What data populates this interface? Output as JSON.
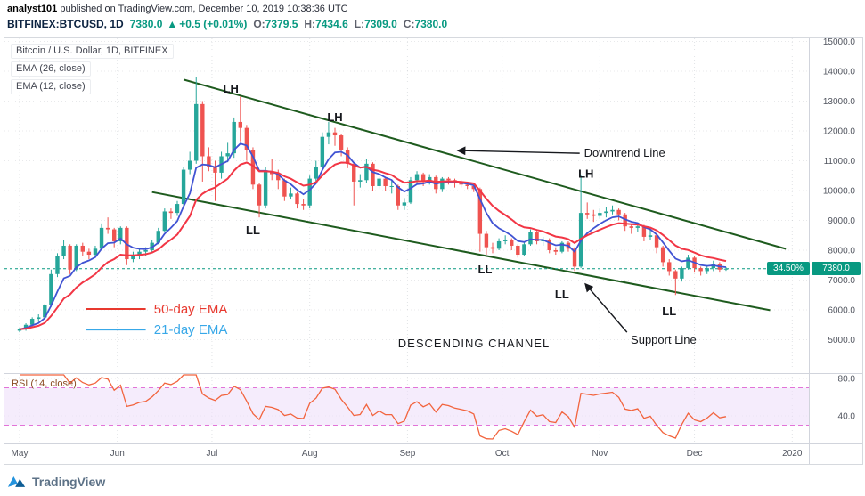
{
  "header": {
    "byline_user": "analyst101",
    "byline_rest": " published on TradingView.com, December 10, 2019 10:38:36 UTC",
    "symbol": "BITFINEX:BTCUSD, 1D",
    "last": "7380.0",
    "arrow": "▲",
    "change": "+0.5 (+0.01%)",
    "o_label": "O:",
    "o": "7379.5",
    "h_label": "H:",
    "h": "7434.6",
    "l_label": "L:",
    "l": "7309.0",
    "c_label": "C:",
    "c": "7380.0"
  },
  "legend": {
    "title": "Bitcoin / U.S. Dollar, 1D, BITFINEX",
    "ema26": "EMA (26, close)",
    "ema12": "EMA (12, close)"
  },
  "rsi_label": "RSI (14, close)",
  "price_axis": {
    "current_badge": "7380.0",
    "percent_badge": "34.50%",
    "ticks": [
      {
        "value": 15000,
        "label": "15000.0"
      },
      {
        "value": 14000,
        "label": "14000.0"
      },
      {
        "value": 13000,
        "label": "13000.0"
      },
      {
        "value": 12000,
        "label": "12000.0"
      },
      {
        "value": 11000,
        "label": "11000.0"
      },
      {
        "value": 10000,
        "label": "10000.0"
      },
      {
        "value": 9000,
        "label": "9000.0"
      },
      {
        "value": 8000,
        "label": "8000.0"
      },
      {
        "value": 7000,
        "label": "7000.0"
      },
      {
        "value": 6000,
        "label": "6000.0"
      },
      {
        "value": 5000,
        "label": "5000.0"
      }
    ]
  },
  "rsi_axis": {
    "ticks": [
      {
        "value": 80,
        "label": "80.0"
      },
      {
        "value": 40,
        "label": "40.0"
      }
    ]
  },
  "time_axis": {
    "labels": [
      {
        "slot": 0,
        "label": "May"
      },
      {
        "slot": 15.5,
        "label": "Jun"
      },
      {
        "slot": 30.5,
        "label": "Jul"
      },
      {
        "slot": 46,
        "label": "Aug"
      },
      {
        "slot": 61.5,
        "label": "Sep"
      },
      {
        "slot": 76.5,
        "label": "Oct"
      },
      {
        "slot": 92,
        "label": "Nov"
      },
      {
        "slot": 107,
        "label": "Dec"
      },
      {
        "slot": 122.5,
        "label": "2020"
      }
    ]
  },
  "footer": {
    "logo_text": "TradingView"
  },
  "colors": {
    "up": "#26a69a",
    "down": "#ef5350",
    "ema_fast": "#4053d3",
    "ema_slow": "#f23645",
    "channel": "#1e5b1e",
    "current": "#089981",
    "rsi": "#f2643e",
    "band_fill": "#efe0fa",
    "band_edge": "#e273d8",
    "badge": "#089981"
  },
  "chart_data": {
    "type": "candlestick",
    "title": "Bitcoin / U.S. Dollar, 1D, BITFINEX",
    "exchange": "BITFINEX",
    "pair": "BTC/USD",
    "interval": "1D",
    "ylim": [
      4000,
      15150
    ],
    "price_line": 7380.0,
    "candles": [
      [
        5300,
        5400,
        5250,
        5350
      ],
      [
        5350,
        5550,
        5300,
        5500
      ],
      [
        5500,
        5750,
        5450,
        5700
      ],
      [
        5700,
        5850,
        5600,
        5750
      ],
      [
        5750,
        6200,
        5700,
        6150
      ],
      [
        6150,
        7350,
        6100,
        7200
      ],
      [
        7200,
        7900,
        7100,
        7800
      ],
      [
        7800,
        8350,
        7700,
        8150
      ],
      [
        8150,
        8200,
        7200,
        7350
      ],
      [
        7350,
        8200,
        7300,
        8150
      ],
      [
        8150,
        8250,
        7800,
        7950
      ],
      [
        7950,
        8050,
        7700,
        7850
      ],
      [
        7850,
        8150,
        7750,
        8050
      ],
      [
        8050,
        8900,
        8000,
        8750
      ],
      [
        8750,
        9100,
        8550,
        8700
      ],
      [
        8700,
        8750,
        8100,
        8300
      ],
      [
        8300,
        8800,
        8200,
        8750
      ],
      [
        8750,
        8800,
        7500,
        7700
      ],
      [
        7700,
        7950,
        7600,
        7800
      ],
      [
        7800,
        8050,
        7700,
        7950
      ],
      [
        7950,
        8100,
        7800,
        8000
      ],
      [
        8000,
        8350,
        7900,
        8250
      ],
      [
        8250,
        8750,
        8200,
        8650
      ],
      [
        8650,
        9400,
        8600,
        9300
      ],
      [
        9300,
        9400,
        9050,
        9250
      ],
      [
        9250,
        9650,
        9150,
        9550
      ],
      [
        9550,
        10800,
        9500,
        10700
      ],
      [
        10700,
        11300,
        10550,
        11000
      ],
      [
        11000,
        13800,
        10900,
        12900
      ],
      [
        12900,
        13000,
        10300,
        11150
      ],
      [
        11150,
        11450,
        10650,
        10800
      ],
      [
        10800,
        11000,
        9650,
        10600
      ],
      [
        10600,
        11300,
        10400,
        11150
      ],
      [
        11150,
        11600,
        10950,
        11250
      ],
      [
        11250,
        12450,
        11100,
        12300
      ],
      [
        12300,
        13150,
        11650,
        12100
      ],
      [
        12100,
        12200,
        11000,
        11350
      ],
      [
        11350,
        11450,
        10050,
        10200
      ],
      [
        10200,
        10250,
        9100,
        9500
      ],
      [
        9500,
        10800,
        9400,
        10650
      ],
      [
        10650,
        11050,
        10350,
        10550
      ],
      [
        10550,
        10700,
        10050,
        10350
      ],
      [
        10350,
        10400,
        9650,
        9800
      ],
      [
        9800,
        10100,
        9700,
        9900
      ],
      [
        9900,
        9950,
        9400,
        9550
      ],
      [
        9550,
        9700,
        9350,
        9500
      ],
      [
        9500,
        10500,
        9400,
        10400
      ],
      [
        10400,
        11000,
        10300,
        10800
      ],
      [
        10800,
        11950,
        10750,
        11800
      ],
      [
        11800,
        12300,
        11550,
        11950
      ],
      [
        11950,
        12100,
        11500,
        11850
      ],
      [
        11850,
        11900,
        11150,
        11350
      ],
      [
        11350,
        11450,
        10750,
        10900
      ],
      [
        10900,
        10950,
        9500,
        10300
      ],
      [
        10300,
        10550,
        10100,
        10350
      ],
      [
        10350,
        11050,
        10250,
        10900
      ],
      [
        10900,
        10950,
        10000,
        10150
      ],
      [
        10150,
        10500,
        10050,
        10400
      ],
      [
        10400,
        10450,
        10000,
        10150
      ],
      [
        10150,
        10350,
        9900,
        10150
      ],
      [
        10150,
        10200,
        9350,
        9500
      ],
      [
        9500,
        9750,
        9350,
        9600
      ],
      [
        9600,
        10450,
        9550,
        10350
      ],
      [
        10350,
        10650,
        10250,
        10550
      ],
      [
        10550,
        10600,
        10150,
        10300
      ],
      [
        10300,
        10550,
        10200,
        10450
      ],
      [
        10450,
        10500,
        9900,
        10050
      ],
      [
        10050,
        10450,
        9950,
        10400
      ],
      [
        10400,
        10450,
        10200,
        10350
      ],
      [
        10350,
        10400,
        10100,
        10250
      ],
      [
        10250,
        10350,
        10100,
        10200
      ],
      [
        10200,
        10300,
        10050,
        10150
      ],
      [
        10150,
        10200,
        9950,
        10050
      ],
      [
        10050,
        10100,
        7950,
        8550
      ],
      [
        8550,
        8650,
        7850,
        8100
      ],
      [
        8100,
        8250,
        7900,
        8050
      ],
      [
        8050,
        8400,
        8000,
        8300
      ],
      [
        8300,
        8500,
        8200,
        8350
      ],
      [
        8350,
        8400,
        8000,
        8150
      ],
      [
        8150,
        8200,
        7750,
        7850
      ],
      [
        7850,
        8300,
        7800,
        8200
      ],
      [
        8200,
        8700,
        8150,
        8600
      ],
      [
        8600,
        8650,
        8200,
        8300
      ],
      [
        8300,
        8450,
        8150,
        8350
      ],
      [
        8350,
        8400,
        7900,
        8000
      ],
      [
        8000,
        8100,
        7850,
        7950
      ],
      [
        7950,
        8300,
        7900,
        8250
      ],
      [
        8250,
        8300,
        7950,
        8050
      ],
      [
        8050,
        8100,
        7300,
        7450
      ],
      [
        7450,
        10500,
        7400,
        9250
      ],
      [
        9250,
        9600,
        9050,
        9200
      ],
      [
        9200,
        9350,
        8950,
        9150
      ],
      [
        9150,
        9400,
        9050,
        9250
      ],
      [
        9250,
        9450,
        9100,
        9300
      ],
      [
        9300,
        9500,
        9200,
        9350
      ],
      [
        9350,
        9400,
        9000,
        9200
      ],
      [
        9200,
        9250,
        8650,
        8800
      ],
      [
        8800,
        8900,
        8550,
        8750
      ],
      [
        8750,
        8900,
        8600,
        8800
      ],
      [
        8800,
        8850,
        8300,
        8450
      ],
      [
        8450,
        8700,
        8350,
        8500
      ],
      [
        8500,
        8550,
        7900,
        8100
      ],
      [
        8100,
        8150,
        7450,
        7600
      ],
      [
        7600,
        7700,
        7150,
        7300
      ],
      [
        7300,
        7350,
        6500,
        7050
      ],
      [
        7050,
        7450,
        6950,
        7400
      ],
      [
        7400,
        7850,
        7350,
        7750
      ],
      [
        7750,
        7800,
        7250,
        7400
      ],
      [
        7400,
        7450,
        7150,
        7300
      ],
      [
        7300,
        7500,
        7200,
        7400
      ],
      [
        7400,
        7650,
        7300,
        7550
      ],
      [
        7550,
        7600,
        7250,
        7350
      ],
      [
        7379.5,
        7434.6,
        7309,
        7380
      ]
    ],
    "emas": [
      {
        "label": "EMA (12, close)",
        "period_bars": 6
      },
      {
        "label": "EMA (26, close)",
        "period_bars": 13
      }
    ],
    "rsi": {
      "label": "RSI (14, close)",
      "period_bars": 7,
      "upper_band": 70,
      "lower_band": 30
    },
    "channel": {
      "upper": {
        "from": [
          26,
          13720
        ],
        "to": [
          121.5,
          8045
        ]
      },
      "lower": {
        "from": [
          21,
          9950
        ],
        "to": [
          119,
          5990
        ]
      }
    },
    "annotations": {
      "lh_labels": [
        {
          "slot": 33.5,
          "price": 13290,
          "text": "LH"
        },
        {
          "slot": 50,
          "price": 12330,
          "text": "LH"
        },
        {
          "slot": 89.8,
          "price": 10430,
          "text": "LH"
        }
      ],
      "ll_labels": [
        {
          "slot": 37,
          "price": 8540,
          "text": "LL"
        },
        {
          "slot": 73.8,
          "price": 7230,
          "text": "LL"
        },
        {
          "slot": 86,
          "price": 6390,
          "text": "LL"
        },
        {
          "slot": 103,
          "price": 5820,
          "text": "LL"
        }
      ],
      "texts": [
        {
          "slot": 89.5,
          "price": 11140,
          "text": "Downtrend Line",
          "size": 13
        },
        {
          "slot": 60,
          "price": 4750,
          "text": "DESCENDING CHANNEL",
          "size": 13,
          "spacing": 1
        },
        {
          "slot": 96.9,
          "price": 4870,
          "text": "Support Line",
          "size": 13
        }
      ],
      "arrows": [
        {
          "from": [
            88.8,
            11250
          ],
          "to": [
            69.5,
            11340
          ]
        },
        {
          "from": [
            96.3,
            5250
          ],
          "to": [
            89.7,
            6870
          ]
        }
      ],
      "ema_labels": [
        {
          "text": "50-day EMA",
          "color": "#e8392f",
          "seg_from": 10.5,
          "seg_to": 20,
          "price": 6030,
          "text_slot": 21.3
        },
        {
          "text": "21-day EMA",
          "color": "#38a8e8",
          "seg_from": 10.5,
          "seg_to": 20,
          "price": 5340,
          "text_slot": 21.3
        }
      ]
    }
  }
}
